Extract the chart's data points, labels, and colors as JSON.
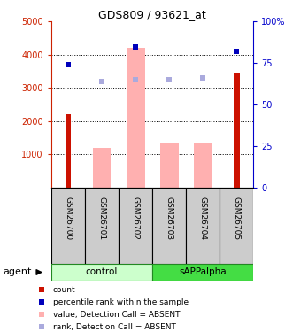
{
  "title": "GDS809 / 93621_at",
  "samples": [
    "GSM26700",
    "GSM26701",
    "GSM26702",
    "GSM26703",
    "GSM26704",
    "GSM26705"
  ],
  "bar_red_values": [
    2200,
    0,
    0,
    0,
    0,
    3450
  ],
  "bar_pink_values": [
    0,
    1200,
    4200,
    1350,
    1350,
    0
  ],
  "dot_blue_values": [
    3700,
    0,
    4250,
    0,
    0,
    4100
  ],
  "dot_lightblue_values": [
    0,
    3200,
    3250,
    3250,
    3300,
    0
  ],
  "left_ylim": [
    0,
    5000
  ],
  "right_ylim": [
    0,
    100
  ],
  "left_yticks": [
    1000,
    2000,
    3000,
    4000,
    5000
  ],
  "right_yticks": [
    0,
    25,
    50,
    75,
    100
  ],
  "left_ytick_labels": [
    "1000",
    "2000",
    "3000",
    "4000",
    "5000"
  ],
  "right_ytick_labels": [
    "0",
    "25",
    "50",
    "75",
    "100%"
  ],
  "left_ycolor": "#cc2200",
  "right_ycolor": "#0000cc",
  "bar_red_color": "#cc1100",
  "bar_pink_color": "#ffb0b0",
  "dot_blue_color": "#0000bb",
  "dot_lightblue_color": "#aaaadd",
  "control_bg": "#ccffcc",
  "sapp_bg": "#44dd44",
  "sample_bg": "#cccccc",
  "legend_items": [
    "count",
    "percentile rank within the sample",
    "value, Detection Call = ABSENT",
    "rank, Detection Call = ABSENT"
  ],
  "legend_colors": [
    "#cc1100",
    "#0000bb",
    "#ffb0b0",
    "#aaaadd"
  ],
  "agent_label": "agent"
}
